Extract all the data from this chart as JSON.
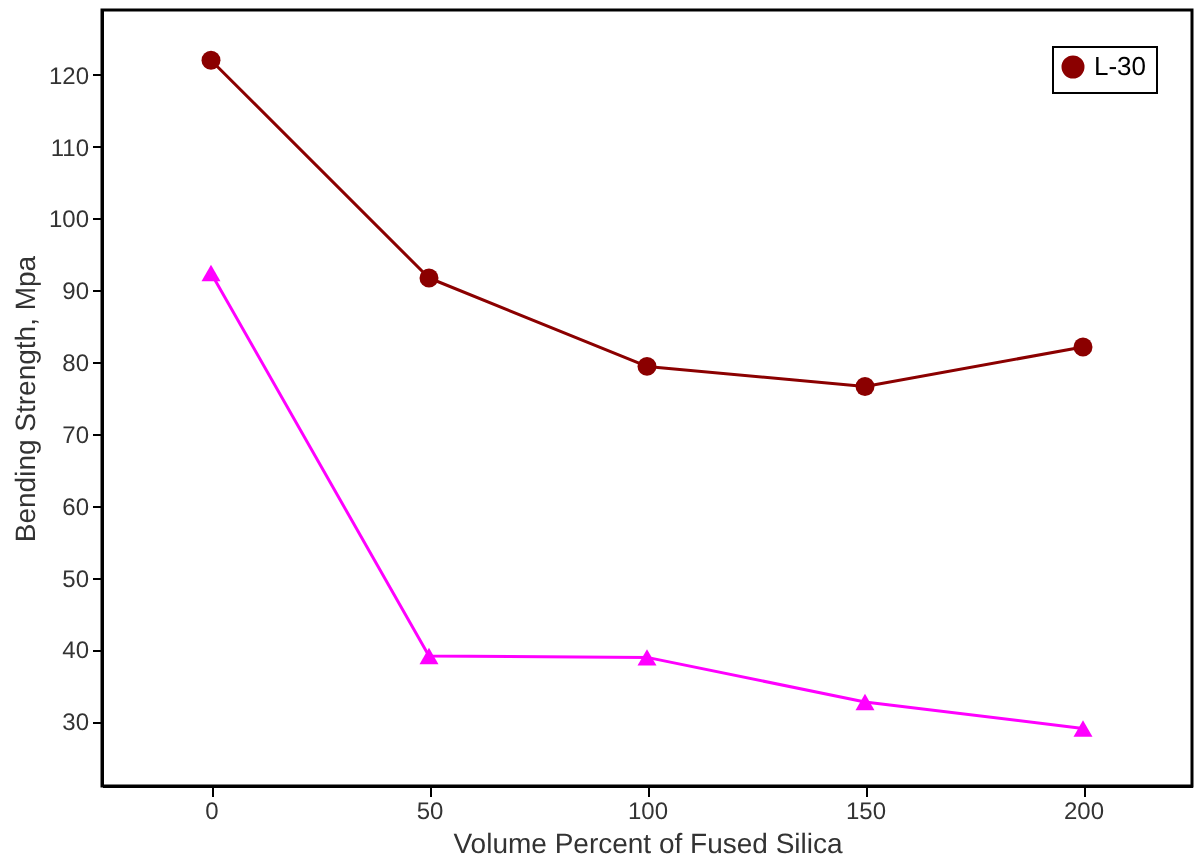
{
  "chart_data": {
    "type": "line",
    "xlabel": "Volume Percent of Fused Silica",
    "ylabel": "Bending Strength, Mpa",
    "x": [
      0,
      50,
      100,
      150,
      200
    ],
    "xlim": [
      -25,
      225
    ],
    "xticks": [
      0,
      50,
      100,
      150,
      200
    ],
    "ylim": [
      21,
      129
    ],
    "yticks": [
      30,
      40,
      50,
      60,
      70,
      80,
      90,
      100,
      110,
      120
    ],
    "grid": false,
    "legend": "top right",
    "line_style": "solid",
    "series": [
      {
        "name": "L-30",
        "color": "#8b0000",
        "marker": "circle",
        "values": [
          122,
          91.7,
          79.4,
          76.6,
          82.1
        ]
      },
      {
        "color": "#ff00ff",
        "marker": "triangle",
        "values": [
          92.4,
          39.1,
          38.9,
          32.7,
          29.0
        ]
      }
    ]
  }
}
